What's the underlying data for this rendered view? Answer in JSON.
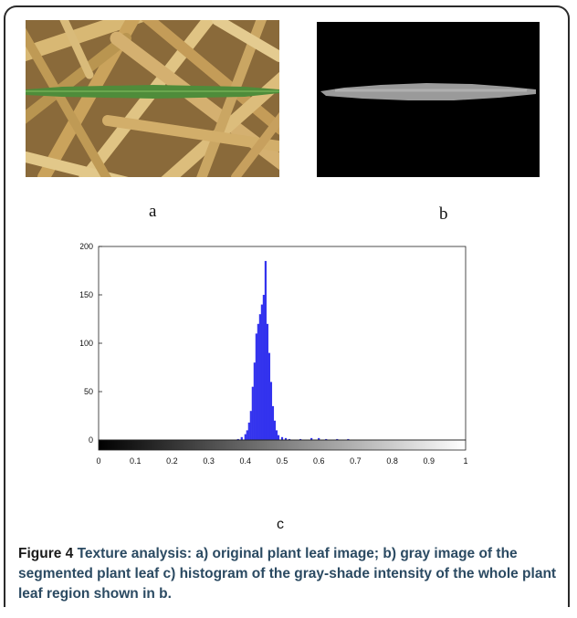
{
  "panels": {
    "a_label": "a",
    "b_label": "b",
    "c_label": "c"
  },
  "colors": {
    "histogram_bar": "#3333ee",
    "straw": "#c9a660",
    "leaf": "#4f8c3a",
    "segmented_leaf": "#9a9a9a",
    "caption_text": "#2b4a62"
  },
  "chart_data": {
    "type": "bar",
    "title": "",
    "xlabel": "",
    "ylabel": "",
    "xlim": [
      0,
      1
    ],
    "ylim": [
      0,
      200
    ],
    "x_ticks": [
      "0",
      "0.1",
      "0.2",
      "0.3",
      "0.4",
      "0.5",
      "0.6",
      "0.7",
      "0.8",
      "0.9",
      "1"
    ],
    "y_ticks": [
      "0",
      "50",
      "100",
      "150",
      "200"
    ],
    "grid": false,
    "colorbar": "grayscale 0 to 1 beneath x-axis",
    "bins": [
      0.38,
      0.39,
      0.4,
      0.405,
      0.41,
      0.415,
      0.42,
      0.425,
      0.43,
      0.435,
      0.44,
      0.445,
      0.45,
      0.455,
      0.46,
      0.465,
      0.47,
      0.475,
      0.48,
      0.485,
      0.49,
      0.5,
      0.51,
      0.52,
      0.55,
      0.58,
      0.6,
      0.62,
      0.65,
      0.68
    ],
    "counts": [
      1,
      3,
      6,
      10,
      18,
      30,
      55,
      80,
      110,
      120,
      130,
      140,
      150,
      185,
      120,
      90,
      60,
      35,
      20,
      10,
      5,
      3,
      2,
      1,
      1,
      2,
      2,
      1,
      1,
      1
    ]
  },
  "caption": {
    "figure_label": "Figure 4",
    "text": " Texture analysis: a) original plant leaf image; b) gray image of the segmented plant leaf c) histogram of the gray-shade intensity of the whole plant leaf region shown in b."
  }
}
